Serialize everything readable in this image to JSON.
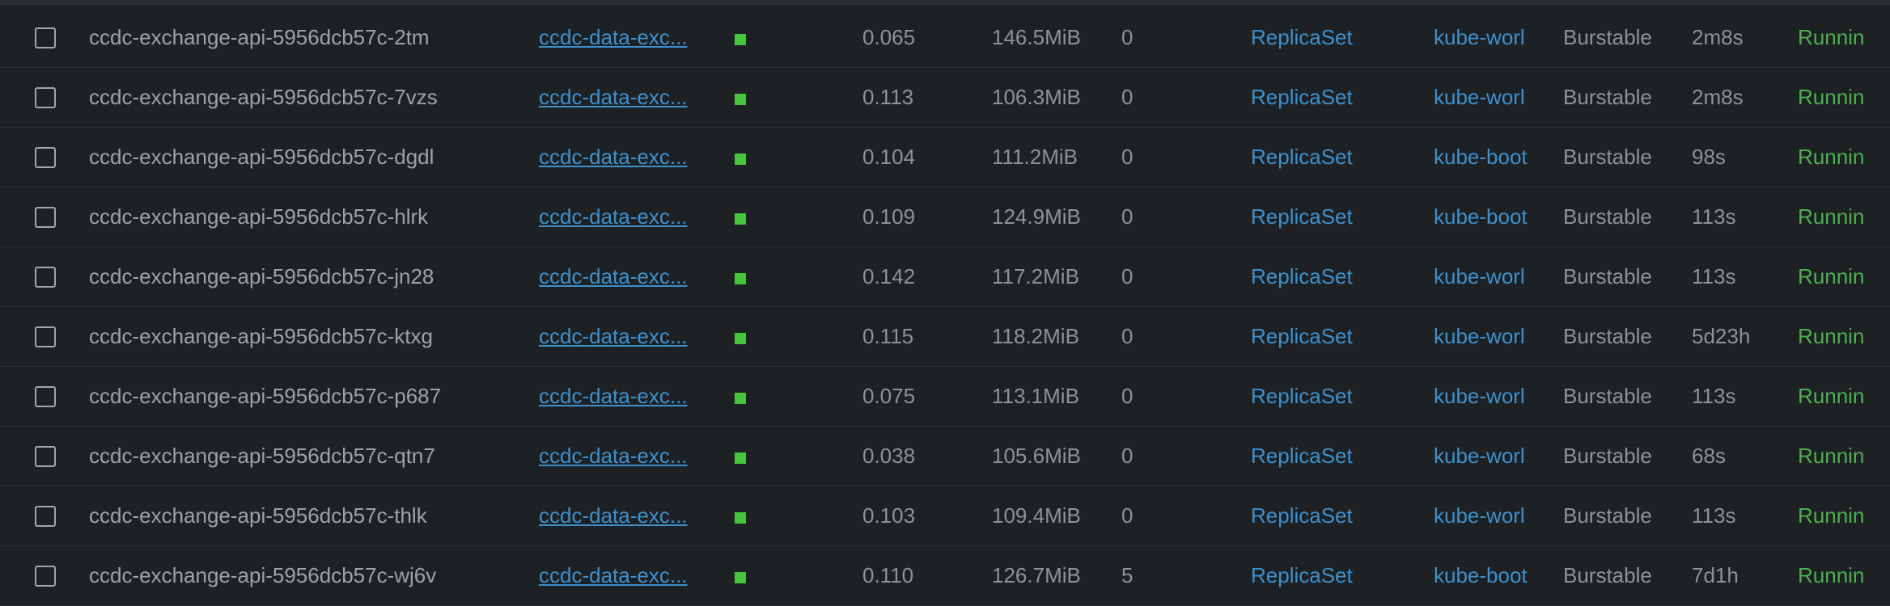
{
  "colors": {
    "background": "#1e2124",
    "text": "#8e9297",
    "link": "#3d90ce",
    "running": "#4caf50",
    "status_square": "#48c53e"
  },
  "pods": [
    {
      "name": "ccdc-exchange-api-5956dcb57c-2tm",
      "controller": "ccdc-data-exc...",
      "cpu": "0.065",
      "memory": "146.5MiB",
      "restarts": "0",
      "controlled_by": "ReplicaSet",
      "node": "kube-worl",
      "qos": "Burstable",
      "age": "2m8s",
      "status": "Runnin"
    },
    {
      "name": "ccdc-exchange-api-5956dcb57c-7vzs",
      "controller": "ccdc-data-exc...",
      "cpu": "0.113",
      "memory": "106.3MiB",
      "restarts": "0",
      "controlled_by": "ReplicaSet",
      "node": "kube-worl",
      "qos": "Burstable",
      "age": "2m8s",
      "status": "Runnin"
    },
    {
      "name": "ccdc-exchange-api-5956dcb57c-dgdl",
      "controller": "ccdc-data-exc...",
      "cpu": "0.104",
      "memory": "111.2MiB",
      "restarts": "0",
      "controlled_by": "ReplicaSet",
      "node": "kube-boot",
      "qos": "Burstable",
      "age": "98s",
      "status": "Runnin"
    },
    {
      "name": "ccdc-exchange-api-5956dcb57c-hlrk",
      "controller": "ccdc-data-exc...",
      "cpu": "0.109",
      "memory": "124.9MiB",
      "restarts": "0",
      "controlled_by": "ReplicaSet",
      "node": "kube-boot",
      "qos": "Burstable",
      "age": "113s",
      "status": "Runnin"
    },
    {
      "name": "ccdc-exchange-api-5956dcb57c-jn28",
      "controller": "ccdc-data-exc...",
      "cpu": "0.142",
      "memory": "117.2MiB",
      "restarts": "0",
      "controlled_by": "ReplicaSet",
      "node": "kube-worl",
      "qos": "Burstable",
      "age": "113s",
      "status": "Runnin"
    },
    {
      "name": "ccdc-exchange-api-5956dcb57c-ktxg",
      "controller": "ccdc-data-exc...",
      "cpu": "0.115",
      "memory": "118.2MiB",
      "restarts": "0",
      "controlled_by": "ReplicaSet",
      "node": "kube-worl",
      "qos": "Burstable",
      "age": "5d23h",
      "status": "Runnin"
    },
    {
      "name": "ccdc-exchange-api-5956dcb57c-p687",
      "controller": "ccdc-data-exc...",
      "cpu": "0.075",
      "memory": "113.1MiB",
      "restarts": "0",
      "controlled_by": "ReplicaSet",
      "node": "kube-worl",
      "qos": "Burstable",
      "age": "113s",
      "status": "Runnin"
    },
    {
      "name": "ccdc-exchange-api-5956dcb57c-qtn7",
      "controller": "ccdc-data-exc...",
      "cpu": "0.038",
      "memory": "105.6MiB",
      "restarts": "0",
      "controlled_by": "ReplicaSet",
      "node": "kube-worl",
      "qos": "Burstable",
      "age": "68s",
      "status": "Runnin"
    },
    {
      "name": "ccdc-exchange-api-5956dcb57c-thlk",
      "controller": "ccdc-data-exc...",
      "cpu": "0.103",
      "memory": "109.4MiB",
      "restarts": "0",
      "controlled_by": "ReplicaSet",
      "node": "kube-worl",
      "qos": "Burstable",
      "age": "113s",
      "status": "Runnin"
    },
    {
      "name": "ccdc-exchange-api-5956dcb57c-wj6v",
      "controller": "ccdc-data-exc...",
      "cpu": "0.110",
      "memory": "126.7MiB",
      "restarts": "5",
      "controlled_by": "ReplicaSet",
      "node": "kube-boot",
      "qos": "Burstable",
      "age": "7d1h",
      "status": "Runnin"
    }
  ]
}
